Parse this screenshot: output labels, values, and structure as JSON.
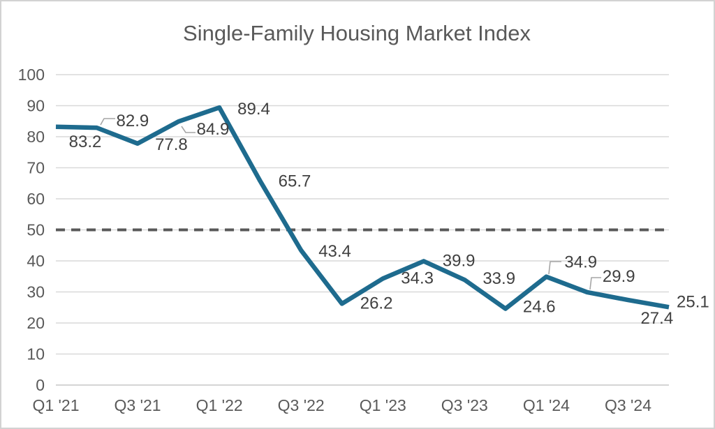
{
  "chart_data": {
    "type": "line",
    "title": "Single-Family Housing Market Index",
    "categories": [
      "Q1 '21",
      "Q2 '21",
      "Q3 '21",
      "Q4 '21",
      "Q1 '22",
      "Q2 '22",
      "Q3 '22",
      "Q4 '22",
      "Q1 '23",
      "Q2 '23",
      "Q3 '23",
      "Q4 '23",
      "Q1 '24",
      "Q2 '24",
      "Q3 '24",
      "Q4 '24"
    ],
    "values": [
      83.2,
      82.9,
      77.8,
      84.9,
      89.4,
      65.7,
      43.4,
      26.2,
      34.3,
      39.9,
      33.9,
      24.6,
      34.9,
      29.9,
      27.4,
      25.1
    ],
    "x_tick_labels": [
      "Q1 '21",
      "Q3 '21",
      "Q1 '22",
      "Q3 '22",
      "Q1 '23",
      "Q3 '23",
      "Q1 '24",
      "Q3 '24"
    ],
    "y_ticks": [
      0,
      10,
      20,
      30,
      40,
      50,
      60,
      70,
      80,
      90,
      100
    ],
    "ylim": [
      0,
      100
    ],
    "grid": true,
    "legend": "none",
    "reference_line": {
      "value": 50,
      "style": "dashed"
    },
    "colors": {
      "series_line": "#1e6b8e",
      "reference_line": "#595959",
      "gridline": "#d9d9d9",
      "axis_line": "#c6c6c6",
      "data_label": "#404040",
      "axis_label": "#595959",
      "title": "#595959",
      "leader_line": "#a6a6a6",
      "background": "#ffffff",
      "frame_border": "#d2d2d2"
    }
  }
}
